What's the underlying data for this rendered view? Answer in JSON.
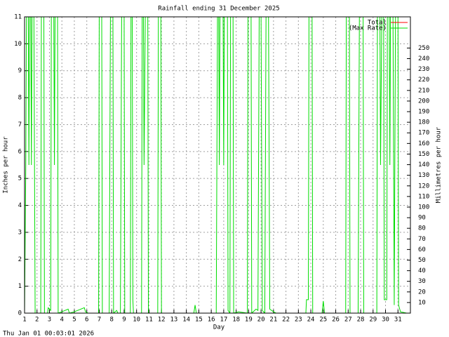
{
  "chart_data": {
    "type": "line",
    "title": "Rainfall ending 31 December 2025",
    "xlabel": "Day",
    "ylabel": "Inches per hour",
    "y2label": "Millimetres per hour",
    "timestamp": "Thu Jan 01 00:03:01 2026",
    "xlim": [
      1,
      32
    ],
    "xticks": [
      1,
      2,
      3,
      4,
      5,
      6,
      7,
      8,
      9,
      10,
      11,
      12,
      13,
      14,
      15,
      16,
      17,
      18,
      19,
      20,
      21,
      22,
      23,
      24,
      25,
      26,
      27,
      28,
      29,
      30,
      31
    ],
    "ylim": [
      0,
      11
    ],
    "yticks": [
      0,
      1,
      2,
      3,
      4,
      5,
      6,
      7,
      8,
      9,
      10,
      11
    ],
    "y2lim": [
      0,
      279.4
    ],
    "y2ticks": [
      10,
      20,
      30,
      40,
      50,
      60,
      70,
      80,
      90,
      100,
      110,
      120,
      130,
      140,
      150,
      160,
      170,
      180,
      190,
      200,
      210,
      220,
      230,
      240,
      250
    ],
    "grid": true,
    "legend": "top-right",
    "series": [
      {
        "name": "Total",
        "color": "#ff0000",
        "x": [
          1,
          31.7
        ],
        "values": [
          0,
          0
        ]
      },
      {
        "name": "(Max Rate)",
        "color": "#00dd00",
        "x": [
          1.0,
          1.1,
          1.15,
          1.3,
          1.35,
          1.4,
          1.5,
          1.55,
          1.6,
          1.75,
          1.8,
          1.85,
          2.3,
          2.35,
          2.55,
          2.6,
          2.85,
          2.9,
          3.0,
          3.1,
          3.15,
          3.35,
          3.4,
          3.45,
          3.65,
          3.7,
          4.0,
          4.5,
          4.6,
          5.0,
          5.8,
          5.9,
          6.1,
          6.95,
          7.0,
          7.2,
          7.25,
          7.8,
          7.85,
          7.9,
          8.1,
          8.15,
          8.4,
          8.5,
          8.7,
          8.75,
          8.8,
          9.0,
          9.05,
          9.5,
          9.55,
          9.65,
          9.7,
          9.75,
          10.4,
          10.45,
          10.55,
          10.6,
          10.7,
          10.9,
          10.95,
          11.7,
          11.75,
          11.95,
          12.0,
          14.6,
          14.7,
          14.8,
          16.4,
          16.5,
          16.6,
          16.65,
          16.7,
          16.95,
          17.0,
          17.05,
          17.3,
          17.35,
          17.5,
          17.55,
          17.75,
          17.8,
          18.2,
          18.9,
          18.95,
          19.2,
          19.25,
          19.6,
          19.75,
          19.85,
          20.0,
          20.1,
          20.3,
          20.4,
          20.6,
          20.7,
          21.0,
          21.2,
          23.6,
          23.65,
          23.8,
          23.85,
          24.1,
          24.15,
          24.9,
          25.0,
          25.1,
          26.8,
          26.85,
          27.1,
          27.15,
          27.8,
          27.85,
          27.9,
          28.2,
          28.25,
          29.3,
          29.35,
          29.55,
          29.6,
          29.7,
          29.85,
          29.9,
          30.1,
          30.15,
          30.3,
          30.35,
          30.4,
          30.6,
          30.7,
          30.8,
          31.0,
          31.05,
          31.2,
          31.7
        ],
        "values": [
          0,
          5.5,
          11,
          11,
          5.5,
          11,
          11,
          5.5,
          11,
          11,
          5.5,
          0,
          0,
          11,
          11,
          0,
          0,
          0.2,
          0.15,
          0.1,
          11,
          11,
          5.5,
          11,
          11,
          0,
          0.05,
          0.15,
          0,
          0.05,
          0.2,
          0.05,
          0,
          0,
          11,
          11,
          0,
          0,
          5.5,
          11,
          11,
          0,
          0.1,
          0,
          0,
          5.5,
          11,
          11,
          0,
          0,
          11,
          11,
          0.5,
          0,
          0,
          11,
          11,
          5.5,
          11,
          11,
          0,
          0,
          11,
          11,
          0,
          0,
          0.3,
          0,
          0,
          11,
          11,
          5.5,
          11,
          11,
          5.5,
          11,
          11,
          0.1,
          0,
          11,
          11,
          0,
          0.05,
          0,
          11,
          11,
          0,
          0.15,
          0.1,
          11,
          11,
          0.1,
          0,
          11,
          11,
          0.15,
          0.05,
          0,
          0,
          0.5,
          0.5,
          11,
          11,
          0,
          0,
          0.45,
          0,
          0,
          11,
          11,
          0,
          0,
          5.5,
          11,
          11,
          0,
          0,
          11,
          11,
          5.5,
          11,
          11,
          0.5,
          0.5,
          11,
          11,
          5.5,
          11,
          11,
          0.3,
          11,
          11,
          0.3,
          0.05,
          0
        ]
      }
    ]
  }
}
